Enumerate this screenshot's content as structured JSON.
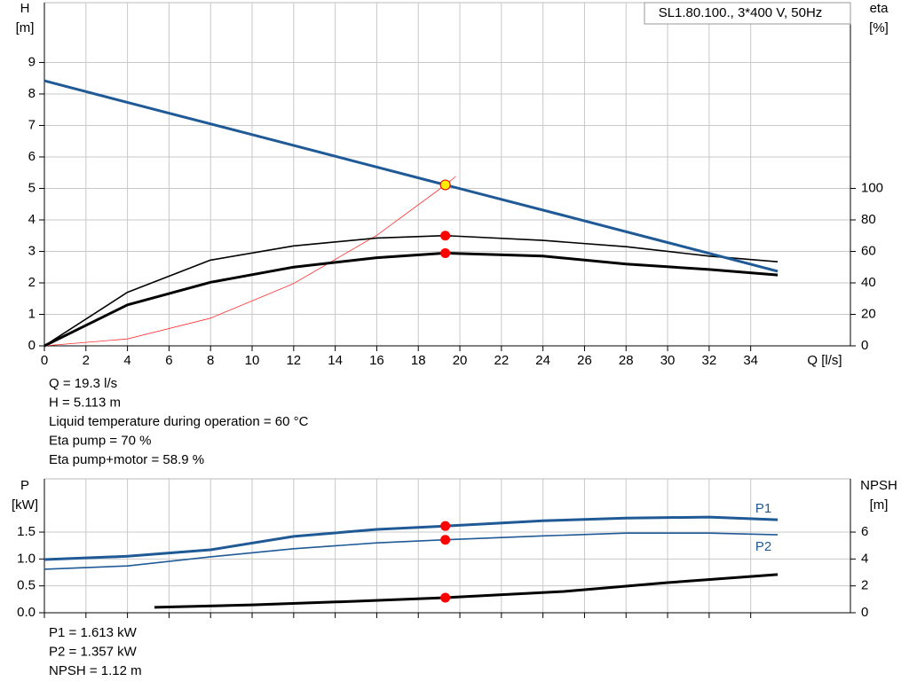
{
  "chart_data": [
    {
      "type": "line",
      "title": "SL1.80.100., 3*400 V, 50Hz",
      "xlabel": "Q [l/s]",
      "ylabel": "H",
      "yunit": "[m]",
      "y2label": "eta",
      "y2unit": "[%]",
      "xlim": [
        0,
        38.8
      ],
      "xticks": [
        0,
        2,
        4,
        6,
        8,
        10,
        12,
        14,
        16,
        18,
        20,
        22,
        24,
        26,
        28,
        30,
        32,
        34
      ],
      "ylim": [
        0,
        10.9
      ],
      "yticks": [
        0,
        1,
        2,
        3,
        4,
        5,
        6,
        7,
        8,
        9
      ],
      "y2lim": [
        0,
        218
      ],
      "y2ticks": [
        0,
        20,
        40,
        60,
        80,
        100
      ],
      "grid": true,
      "highlight_x": 19.3,
      "series": [
        {
          "color": "#ff3030",
          "line_width": 0.8,
          "axis": "y",
          "x": [
            0,
            4,
            8,
            12,
            16,
            19.3,
            19.8
          ],
          "values": [
            0,
            0.22,
            0.88,
            1.98,
            3.51,
            5.113,
            5.38
          ]
        },
        {
          "color": "#000000",
          "line_width": 1.6,
          "axis": "y2",
          "marker_color": "#ff0000",
          "x": [
            0,
            4,
            8,
            12,
            16,
            19.3,
            24,
            28,
            32,
            35.3
          ],
          "values": [
            0,
            34,
            54.5,
            63.5,
            68.5,
            70,
            67,
            63,
            57,
            53.4
          ]
        },
        {
          "color": "#000000",
          "line_width": 3,
          "axis": "y2",
          "marker_color": "#ff0000",
          "x": [
            0,
            4,
            8,
            12,
            16,
            19.3,
            24,
            28,
            32,
            35.3
          ],
          "values": [
            0,
            26,
            40.4,
            50,
            56,
            58.9,
            57,
            52,
            48.5,
            45
          ]
        },
        {
          "color": "#1f5a96",
          "line_width": 3,
          "axis": "y",
          "marker_color": "#ffee00",
          "x": [
            0,
            5,
            10,
            15,
            19.3,
            25,
            30,
            35.3
          ],
          "values": [
            8.42,
            7.56,
            6.71,
            5.85,
            5.113,
            4.14,
            3.28,
            2.37
          ]
        }
      ],
      "notes": [
        "Q = 19.3 l/s",
        "H = 5.113 m",
        "Liquid temperature during operation = 60 °C",
        "Eta pump = 70 %",
        "Eta pump+motor = 58.9 %"
      ]
    },
    {
      "type": "line",
      "ylabel": "P",
      "yunit": "[kW]",
      "y2label": "NPSH",
      "y2unit": "[m]",
      "xlim": [
        0,
        38.8
      ],
      "ylim": [
        0,
        2.49
      ],
      "yticks": [
        {
          "value": 0,
          "label": "0.0"
        },
        {
          "value": 0.5,
          "label": "0.5"
        },
        {
          "value": 1,
          "label": "1.0"
        },
        {
          "value": 1.5,
          "label": "1.5"
        }
      ],
      "y2lim": [
        0,
        9.96
      ],
      "y2ticks": [
        0,
        2,
        4,
        6
      ],
      "grid": true,
      "highlight_x": 19.3,
      "series": [
        {
          "name": "P1",
          "color": "#1f5a96",
          "line_width": 3,
          "axis": "y",
          "marker_color": "#ff0000",
          "x": [
            0,
            4,
            8,
            12,
            16,
            19.3,
            24,
            28,
            32,
            35.3
          ],
          "values": [
            0.99,
            1.05,
            1.17,
            1.42,
            1.55,
            1.613,
            1.71,
            1.76,
            1.78,
            1.73
          ]
        },
        {
          "name": "P2",
          "color": "#1f5a96",
          "line_width": 1.6,
          "axis": "y",
          "marker_color": "#ff0000",
          "x": [
            0,
            4,
            8,
            12,
            16,
            19.3,
            24,
            28,
            32,
            35.3
          ],
          "values": [
            0.81,
            0.87,
            1.04,
            1.19,
            1.3,
            1.357,
            1.43,
            1.48,
            1.48,
            1.45
          ]
        },
        {
          "color": "#000000",
          "line_width": 3,
          "axis": "y2",
          "marker_color": "#ff0000",
          "x": [
            5.3,
            10,
            15,
            19.3,
            25,
            30,
            35.3
          ],
          "values": [
            0.4,
            0.59,
            0.86,
            1.12,
            1.58,
            2.24,
            2.84
          ]
        }
      ],
      "notes": [
        "P1 = 1.613 kW",
        "P2 = 1.357 kW",
        "NPSH = 1.12 m"
      ]
    }
  ]
}
